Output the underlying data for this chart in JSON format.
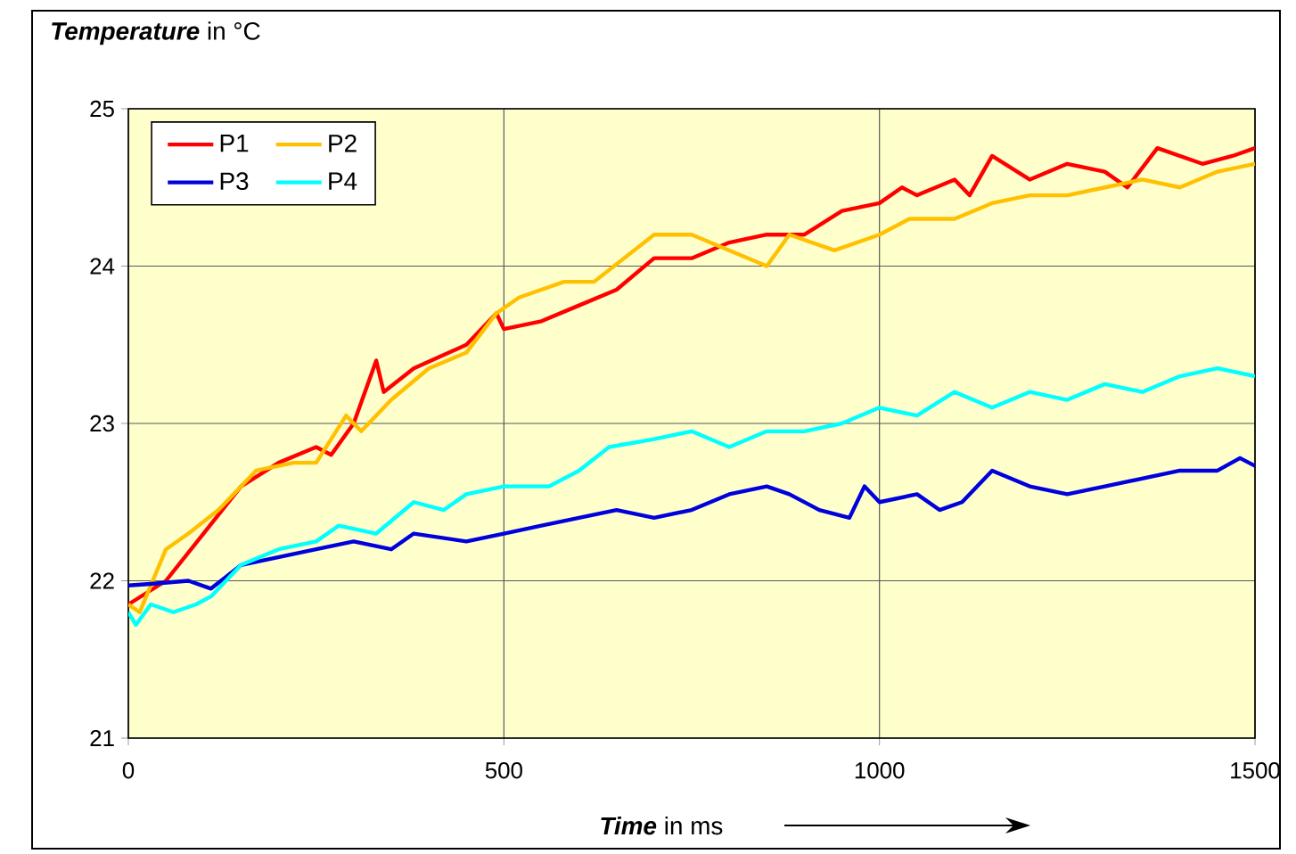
{
  "chart_data": {
    "type": "line",
    "ylabel": "**Temperature** in °C",
    "xlabel": "**Time** in ms",
    "xlim": [
      0,
      1500
    ],
    "xticks": [
      0,
      500,
      1000,
      1500
    ],
    "ylim": [
      21,
      25
    ],
    "yticks": [
      21,
      22,
      23,
      24,
      25
    ],
    "grid": true,
    "legend": "top left",
    "marker": "none",
    "line_style": "solid",
    "series": [
      {
        "name": "P1",
        "color": "#ff0000",
        "x": [
          0,
          50,
          100,
          150,
          200,
          250,
          270,
          300,
          330,
          340,
          380,
          450,
          490,
          500,
          550,
          600,
          650,
          700,
          750,
          800,
          850,
          900,
          950,
          1000,
          1030,
          1050,
          1100,
          1120,
          1150,
          1200,
          1250,
          1300,
          1330,
          1370,
          1400,
          1430,
          1470,
          1500
        ],
        "values": [
          21.85,
          22.0,
          22.3,
          22.6,
          22.75,
          22.85,
          22.8,
          23.0,
          23.4,
          23.2,
          23.35,
          23.5,
          23.7,
          23.6,
          23.65,
          23.75,
          23.85,
          24.05,
          24.05,
          24.15,
          24.2,
          24.2,
          24.35,
          24.4,
          24.5,
          24.45,
          24.55,
          24.45,
          24.7,
          24.55,
          24.65,
          24.6,
          24.5,
          24.75,
          24.7,
          24.65,
          24.7,
          24.75
        ]
      },
      {
        "name": "P2",
        "color": "#ffc000",
        "x": [
          0,
          15,
          50,
          80,
          120,
          170,
          220,
          250,
          290,
          310,
          350,
          400,
          450,
          490,
          520,
          580,
          620,
          700,
          750,
          850,
          880,
          940,
          1000,
          1040,
          1100,
          1150,
          1200,
          1250,
          1300,
          1350,
          1400,
          1450,
          1500
        ],
        "values": [
          21.85,
          21.8,
          22.2,
          22.3,
          22.45,
          22.7,
          22.75,
          22.75,
          23.05,
          22.95,
          23.15,
          23.35,
          23.45,
          23.7,
          23.8,
          23.9,
          23.9,
          24.2,
          24.2,
          24.0,
          24.2,
          24.1,
          24.2,
          24.3,
          24.3,
          24.4,
          24.45,
          24.45,
          24.5,
          24.55,
          24.5,
          24.6,
          24.65
        ]
      },
      {
        "name": "P3",
        "color": "#0000dd",
        "x": [
          0,
          30,
          80,
          110,
          150,
          200,
          250,
          300,
          350,
          380,
          450,
          500,
          550,
          600,
          650,
          700,
          750,
          800,
          850,
          880,
          920,
          960,
          980,
          1000,
          1050,
          1080,
          1110,
          1150,
          1200,
          1250,
          1300,
          1350,
          1400,
          1450,
          1480,
          1500
        ],
        "values": [
          21.97,
          21.98,
          22.0,
          21.95,
          22.1,
          22.15,
          22.2,
          22.25,
          22.2,
          22.3,
          22.25,
          22.3,
          22.35,
          22.4,
          22.45,
          22.4,
          22.45,
          22.55,
          22.6,
          22.55,
          22.45,
          22.4,
          22.6,
          22.5,
          22.55,
          22.45,
          22.5,
          22.7,
          22.6,
          22.55,
          22.6,
          22.65,
          22.7,
          22.7,
          22.78,
          22.73
        ]
      },
      {
        "name": "P4",
        "color": "#00ffff",
        "x": [
          0,
          10,
          30,
          60,
          90,
          110,
          150,
          200,
          250,
          280,
          330,
          380,
          420,
          450,
          500,
          560,
          600,
          640,
          700,
          750,
          800,
          850,
          900,
          950,
          1000,
          1050,
          1100,
          1150,
          1200,
          1250,
          1300,
          1350,
          1400,
          1450,
          1500
        ],
        "values": [
          21.8,
          21.72,
          21.85,
          21.8,
          21.85,
          21.9,
          22.1,
          22.2,
          22.25,
          22.35,
          22.3,
          22.5,
          22.45,
          22.55,
          22.6,
          22.6,
          22.7,
          22.85,
          22.9,
          22.95,
          22.85,
          22.95,
          22.95,
          23.0,
          23.1,
          23.05,
          23.2,
          23.1,
          23.2,
          23.15,
          23.25,
          23.2,
          23.3,
          23.35,
          23.3
        ]
      }
    ]
  }
}
